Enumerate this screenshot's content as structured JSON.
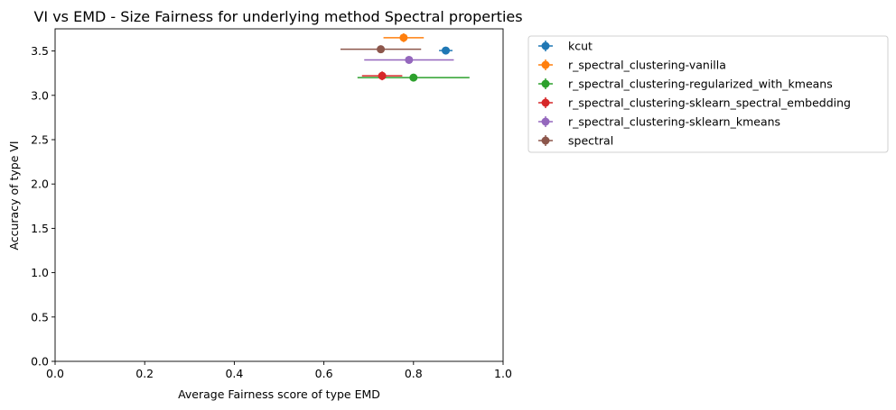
{
  "chart_data": {
    "type": "scatter",
    "title": "VI vs EMD - Size Fairness for underlying method Spectral properties",
    "xlabel": "Average Fairness score of type EMD",
    "ylabel": "Accuracy of type VI",
    "xlim": [
      0.0,
      1.0
    ],
    "ylim": [
      0.0,
      3.75
    ],
    "xticks": [
      "0.0",
      "0.2",
      "0.4",
      "0.6",
      "0.8",
      "1.0"
    ],
    "yticks": [
      "0.0",
      "0.5",
      "1.0",
      "1.5",
      "2.0",
      "2.5",
      "3.0",
      "3.5"
    ],
    "legend_position": "outside-upper-right",
    "grid": false,
    "series": [
      {
        "name": "kcut",
        "color": "#1f77b4",
        "x": 0.872,
        "y": 3.505,
        "xerr": 0.015,
        "yerr": 0.04
      },
      {
        "name": "r_spectral_clustering-vanilla",
        "color": "#ff7f0e",
        "x": 0.778,
        "y": 3.65,
        "xerr": 0.045,
        "yerr": 0.05
      },
      {
        "name": "r_spectral_clustering-regularized_with_kmeans",
        "color": "#2ca02c",
        "x": 0.8,
        "y": 3.2,
        "xerr": 0.125,
        "yerr": 0.02
      },
      {
        "name": "r_spectral_clustering-sklearn_spectral_embedding",
        "color": "#d62728",
        "x": 0.73,
        "y": 3.22,
        "xerr": 0.045,
        "yerr": 0.05
      },
      {
        "name": "r_spectral_clustering-sklearn_kmeans",
        "color": "#9467bd",
        "x": 0.79,
        "y": 3.4,
        "xerr": 0.1,
        "yerr": 0.03
      },
      {
        "name": "spectral",
        "color": "#8c564b",
        "x": 0.727,
        "y": 3.52,
        "xerr": 0.09,
        "yerr": 0.03
      }
    ]
  }
}
